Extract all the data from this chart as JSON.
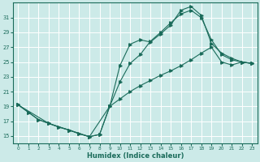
{
  "xlabel": "Humidex (Indice chaleur)",
  "xlim": [
    -0.5,
    23.5
  ],
  "ylim": [
    14.0,
    33.0
  ],
  "xticks": [
    0,
    1,
    2,
    3,
    4,
    5,
    6,
    7,
    8,
    9,
    10,
    11,
    12,
    13,
    14,
    15,
    16,
    17,
    18,
    19,
    20,
    21,
    22,
    23
  ],
  "yticks": [
    15,
    17,
    19,
    21,
    23,
    25,
    27,
    29,
    31
  ],
  "bg_color": "#cceae8",
  "line_color": "#1a6b5a",
  "grid_color": "#ffffff",
  "line1_x": [
    0,
    1,
    2,
    3,
    4,
    5,
    6,
    7,
    8,
    9,
    10,
    11,
    12,
    13,
    14,
    15,
    16,
    17,
    18,
    19,
    20,
    21,
    22,
    23
  ],
  "line1_y": [
    19.2,
    18.2,
    17.2,
    16.7,
    16.2,
    15.8,
    15.3,
    14.9,
    15.2,
    19.0,
    24.5,
    27.4,
    28.0,
    27.7,
    28.8,
    30.0,
    32.0,
    32.5,
    31.3,
    27.5,
    26.2,
    25.5,
    25.0,
    24.8
  ],
  "line2_x": [
    0,
    1,
    2,
    3,
    4,
    5,
    6,
    7,
    8,
    9,
    10,
    11,
    12,
    13,
    14,
    15,
    16,
    17,
    18,
    19,
    20,
    21,
    22,
    23
  ],
  "line2_y": [
    19.2,
    18.2,
    17.2,
    16.7,
    16.2,
    15.8,
    15.3,
    14.9,
    15.2,
    19.0,
    22.3,
    24.8,
    26.0,
    27.8,
    29.0,
    30.3,
    31.5,
    32.0,
    31.0,
    28.0,
    26.0,
    25.3,
    25.0,
    24.8
  ],
  "line3_x": [
    0,
    3,
    5,
    7,
    9,
    10,
    11,
    12,
    13,
    14,
    15,
    16,
    17,
    18,
    19,
    20,
    21,
    22,
    23
  ],
  "line3_y": [
    19.2,
    16.7,
    15.8,
    14.9,
    19.0,
    20.0,
    21.0,
    21.8,
    22.5,
    23.2,
    23.8,
    24.5,
    25.3,
    26.2,
    27.0,
    25.0,
    24.6,
    25.0,
    24.8
  ]
}
